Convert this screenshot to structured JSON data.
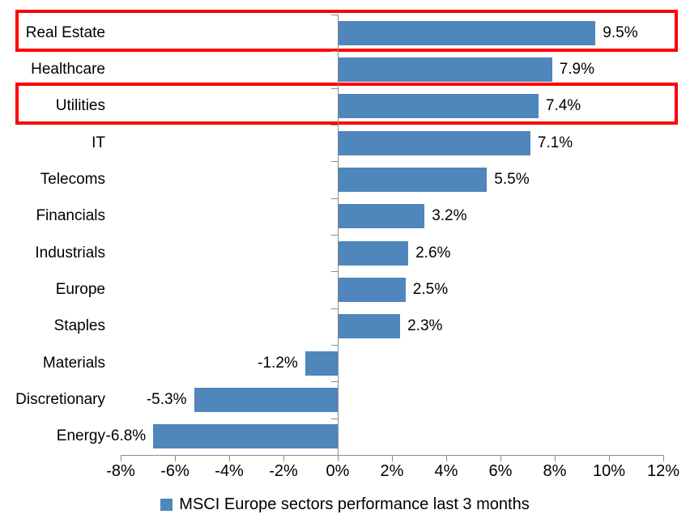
{
  "chart_data": {
    "type": "bar",
    "orientation": "horizontal",
    "title": "",
    "legend": "MSCI Europe sectors performance last 3 months",
    "legend_position": "bottom-center",
    "xlim": [
      -8,
      12
    ],
    "grid": false,
    "x_tick_values": [
      -8,
      -6,
      -4,
      -2,
      0,
      2,
      4,
      6,
      8,
      10,
      12
    ],
    "x_tick_labels": [
      "-8%",
      "-6%",
      "-4%",
      "-2%",
      "0%",
      "2%",
      "4%",
      "6%",
      "8%",
      "10%",
      "12%"
    ],
    "categories": [
      "Real Estate",
      "Healthcare",
      "Utilities",
      "IT",
      "Telecoms",
      "Financials",
      "Industrials",
      "Europe",
      "Staples",
      "Materials",
      "Discretionary",
      "Energy"
    ],
    "values": [
      9.5,
      7.9,
      7.4,
      7.1,
      5.5,
      3.2,
      2.6,
      2.5,
      2.3,
      -1.2,
      -5.3,
      -6.8
    ],
    "series": [
      {
        "category": "Real Estate",
        "value": 9.5,
        "label": "9.5%",
        "highlighted": true
      },
      {
        "category": "Healthcare",
        "value": 7.9,
        "label": "7.9%",
        "highlighted": false
      },
      {
        "category": "Utilities",
        "value": 7.4,
        "label": "7.4%",
        "highlighted": true
      },
      {
        "category": "IT",
        "value": 7.1,
        "label": "7.1%",
        "highlighted": false
      },
      {
        "category": "Telecoms",
        "value": 5.5,
        "label": "5.5%",
        "highlighted": false
      },
      {
        "category": "Financials",
        "value": 3.2,
        "label": "3.2%",
        "highlighted": false
      },
      {
        "category": "Industrials",
        "value": 2.6,
        "label": "2.6%",
        "highlighted": false
      },
      {
        "category": "Europe",
        "value": 2.5,
        "label": "2.5%",
        "highlighted": false
      },
      {
        "category": "Staples",
        "value": 2.3,
        "label": "2.3%",
        "highlighted": false
      },
      {
        "category": "Materials",
        "value": -1.2,
        "label": "-1.2%",
        "highlighted": false
      },
      {
        "category": "Discretionary",
        "value": -5.3,
        "label": "-5.3%",
        "highlighted": false
      },
      {
        "category": "Energy",
        "value": -6.8,
        "label": "-6.8%",
        "highlighted": false
      }
    ]
  },
  "colors": {
    "bar": "#4F86BC",
    "highlight_box": "#FF0000",
    "axis": "#8C8C8C",
    "text": "#000000",
    "background": "#FFFFFF"
  }
}
